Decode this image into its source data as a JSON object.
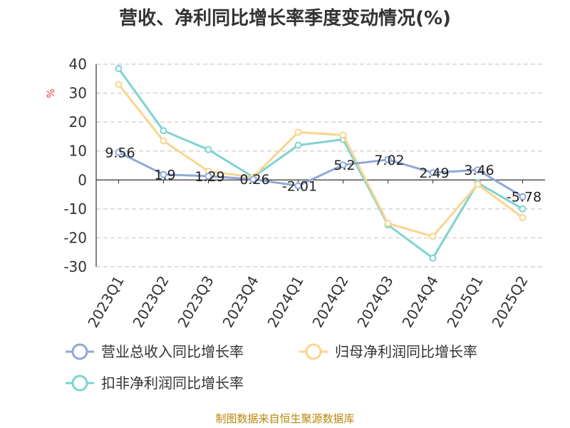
{
  "chart_data": {
    "type": "line",
    "title": "营收、净利同比增长率季度变动情况(%)",
    "ylabel": "%",
    "ylim": [
      -30,
      40
    ],
    "yticks": [
      40,
      30,
      20,
      10,
      0,
      -10,
      -20,
      -30
    ],
    "grid": "horizontal dashed",
    "legend_position": "bottom",
    "categories": [
      "2023Q1",
      "2023Q2",
      "2023Q3",
      "2023Q4",
      "2024Q1",
      "2024Q2",
      "2024Q3",
      "2024Q4",
      "2025Q1",
      "2025Q2"
    ],
    "series": [
      {
        "name": "营业总收入同比增长率",
        "color": "#8fa8d8",
        "values": [
          9.56,
          1.9,
          1.29,
          0.26,
          -2.01,
          5.2,
          7.02,
          2.49,
          3.46,
          -5.78
        ],
        "labels": [
          "9.56",
          "1.9",
          "1.29",
          "0.26",
          "-2.01",
          "5.2",
          "7.02",
          "2.49",
          "3.46",
          "-5.78"
        ]
      },
      {
        "name": "归母净利润同比增长率",
        "color": "#f9d58e",
        "values": [
          33,
          13.5,
          3,
          1,
          16.5,
          15.5,
          -15,
          -19.5,
          -1.5,
          -13
        ]
      },
      {
        "name": "扣非净利润同比增长率",
        "color": "#7fd3d3",
        "values": [
          38.5,
          17,
          10.5,
          1,
          12,
          14,
          -15.5,
          -27,
          -1,
          -10
        ]
      }
    ]
  },
  "footer": {
    "source": "制图数据来自恒生聚源数据库"
  }
}
